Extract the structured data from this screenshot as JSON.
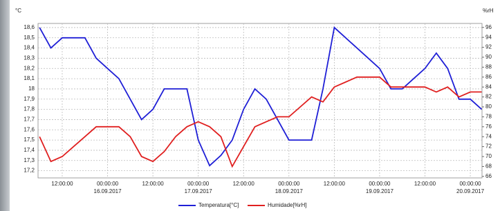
{
  "chart_data": {
    "type": "line",
    "y_unit": "°C",
    "y2_unit": "%rH",
    "x": [
      "2017-09-15T06:00",
      "2017-09-15T09:00",
      "2017-09-15T12:00",
      "2017-09-15T15:00",
      "2017-09-15T18:00",
      "2017-09-15T21:00",
      "2017-09-16T00:00",
      "2017-09-16T03:00",
      "2017-09-16T06:00",
      "2017-09-16T09:00",
      "2017-09-16T12:00",
      "2017-09-16T15:00",
      "2017-09-16T18:00",
      "2017-09-16T21:00",
      "2017-09-17T00:00",
      "2017-09-17T03:00",
      "2017-09-17T06:00",
      "2017-09-17T09:00",
      "2017-09-17T12:00",
      "2017-09-17T15:00",
      "2017-09-17T18:00",
      "2017-09-17T21:00",
      "2017-09-18T00:00",
      "2017-09-18T03:00",
      "2017-09-18T06:00",
      "2017-09-18T09:00",
      "2017-09-18T12:00",
      "2017-09-18T15:00",
      "2017-09-18T18:00",
      "2017-09-18T21:00",
      "2017-09-19T00:00",
      "2017-09-19T03:00",
      "2017-09-19T06:00",
      "2017-09-19T09:00",
      "2017-09-19T12:00",
      "2017-09-19T15:00",
      "2017-09-19T18:00",
      "2017-09-19T21:00",
      "2017-09-20T00:00",
      "2017-09-20T03:00"
    ],
    "series": [
      {
        "name": "Temperatura[°C]",
        "color": "#1f1fd6",
        "values": [
          18.6,
          18.4,
          18.5,
          18.5,
          18.5,
          18.3,
          18.2,
          18.1,
          17.9,
          17.7,
          17.8,
          18.0,
          18.0,
          18.0,
          17.5,
          17.25,
          17.35,
          17.5,
          17.8,
          18.0,
          17.9,
          17.7,
          17.5,
          17.5,
          17.5,
          18.0,
          18.6,
          18.5,
          18.4,
          18.3,
          18.2,
          18.0,
          18.0,
          18.1,
          18.2,
          18.35,
          18.2,
          17.9,
          17.9,
          17.8
        ]
      },
      {
        "name": "Humidade[%rH]",
        "color": "#e01f1f",
        "axis": "y2",
        "values": [
          74,
          69,
          70,
          72,
          74,
          76,
          76,
          76,
          74,
          70,
          69,
          71,
          74,
          76,
          77,
          76,
          74,
          68,
          72,
          76,
          77,
          78,
          78,
          80,
          82,
          81,
          84,
          85,
          86,
          86,
          86,
          84,
          84,
          84,
          84,
          83,
          84,
          82,
          83,
          83
        ]
      }
    ],
    "xlim": [
      "2017-09-15T05:36",
      "2017-09-20T03:06"
    ],
    "xticks": [
      {
        "value": "2017-09-15T12:00",
        "label": "12:00:00"
      },
      {
        "value": "2017-09-16T00:00",
        "label": "00:00:00"
      },
      {
        "value": "2017-09-16T12:00",
        "label": "12:00:00"
      },
      {
        "value": "2017-09-17T00:00",
        "label": "00:00:00"
      },
      {
        "value": "2017-09-17T12:00",
        "label": "12:00:00"
      },
      {
        "value": "2017-09-18T00:00",
        "label": "00:00:00"
      },
      {
        "value": "2017-09-18T12:00",
        "label": "12:00:00"
      },
      {
        "value": "2017-09-19T00:00",
        "label": "00:00:00"
      },
      {
        "value": "2017-09-19T12:00",
        "label": "12:00:00"
      },
      {
        "value": "2017-09-20T00:00",
        "label": "00:00:00"
      }
    ],
    "date_labels": [
      {
        "value": "2017-09-16T00:00",
        "label": "16.09.2017"
      },
      {
        "value": "2017-09-17T00:00",
        "label": "17.09.2017"
      },
      {
        "value": "2017-09-18T00:00",
        "label": "18.09.2017"
      },
      {
        "value": "2017-09-19T00:00",
        "label": "19.09.2017"
      },
      {
        "value": "2017-09-20T00:00",
        "label": "20.09.2017"
      }
    ],
    "ylim": [
      17.13,
      18.64
    ],
    "yticks": [
      {
        "value": 18.6,
        "label": "18,6"
      },
      {
        "value": 18.5,
        "label": "18,5"
      },
      {
        "value": 18.4,
        "label": "18,4"
      },
      {
        "value": 18.3,
        "label": "18,3"
      },
      {
        "value": 18.2,
        "label": "18,2"
      },
      {
        "value": 18.1,
        "label": "18,1"
      },
      18,
      {
        "value": 17.9,
        "label": "17,9"
      },
      {
        "value": 17.8,
        "label": "17,8"
      },
      {
        "value": 17.7,
        "label": "17,7"
      },
      {
        "value": 17.6,
        "label": "17,6"
      },
      {
        "value": 17.5,
        "label": "17,5"
      },
      {
        "value": 17.4,
        "label": "17,4"
      },
      {
        "value": 17.3,
        "label": "17,3"
      },
      {
        "value": 17.2,
        "label": "17,2"
      }
    ],
    "y2lim": [
      65.7,
      96.8
    ],
    "y2ticks": [
      96,
      94,
      92,
      90,
      88,
      86,
      84,
      82,
      80,
      78,
      76,
      74,
      72,
      70,
      68,
      66
    ],
    "grid": true,
    "legend": "bottom"
  }
}
